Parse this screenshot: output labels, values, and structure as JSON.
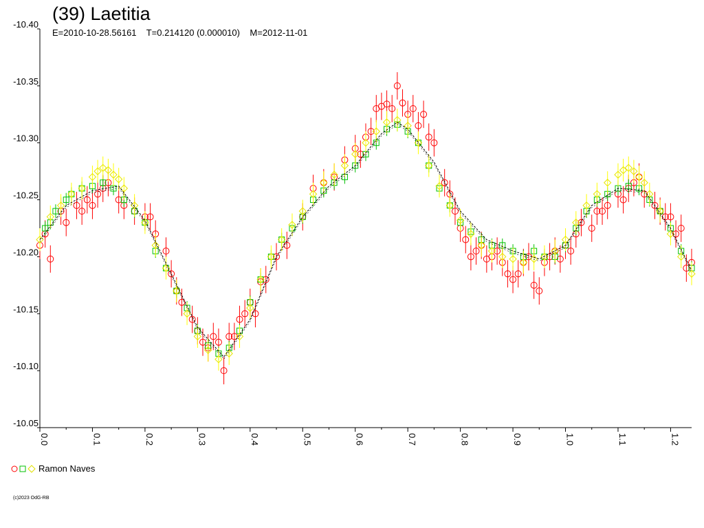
{
  "chart_data": {
    "type": "scatter",
    "title": "(39) Laetitia",
    "subtitle": "E=2010-10-28.56161    T=0.214120 (0.000010)    M=2012-11-01",
    "xlabel": "",
    "ylabel": "",
    "xlim": [
      0.0,
      1.24
    ],
    "ylim": [
      -10.4,
      -10.05
    ],
    "y_inverted": true,
    "x_ticks": [
      "0.0",
      "0.1",
      "0.2",
      "0.3",
      "0.4",
      "0.5",
      "0.6",
      "0.7",
      "0.8",
      "0.9",
      "1.0",
      "1.1",
      "1.2"
    ],
    "y_ticks": [
      "-10.40",
      "-10.35",
      "-10.30",
      "-10.25",
      "-10.20",
      "-10.15",
      "-10.10",
      "-10.05"
    ],
    "grid": false,
    "legend": {
      "placement": "bottom-left",
      "label": "Ramon Naves"
    },
    "copyright": "(c)2023 OdG-RB",
    "fit_curve": {
      "x": [
        0.0,
        0.05,
        0.1,
        0.15,
        0.2,
        0.25,
        0.3,
        0.35,
        0.4,
        0.45,
        0.5,
        0.55,
        0.6,
        0.65,
        0.68,
        0.7,
        0.75,
        0.8,
        0.85,
        0.9,
        0.95,
        1.0,
        1.05,
        1.1,
        1.15,
        1.2,
        1.24
      ],
      "y": [
        -10.215,
        -10.245,
        -10.258,
        -10.262,
        -10.232,
        -10.185,
        -10.138,
        -10.112,
        -10.145,
        -10.2,
        -10.235,
        -10.262,
        -10.28,
        -10.308,
        -10.318,
        -10.312,
        -10.283,
        -10.24,
        -10.215,
        -10.205,
        -10.198,
        -10.21,
        -10.245,
        -10.26,
        -10.258,
        -10.225,
        -10.188
      ]
    },
    "series": [
      {
        "color": "#ff0000",
        "marker": "circle",
        "x": [
          0.0,
          0.01,
          0.02,
          0.04,
          0.05,
          0.07,
          0.08,
          0.09,
          0.1,
          0.11,
          0.12,
          0.13,
          0.15,
          0.16,
          0.18,
          0.2,
          0.21,
          0.22,
          0.24,
          0.25,
          0.26,
          0.27,
          0.29,
          0.3,
          0.31,
          0.32,
          0.33,
          0.34,
          0.35,
          0.36,
          0.37,
          0.38,
          0.39,
          0.4,
          0.41,
          0.42,
          0.43,
          0.45,
          0.47,
          0.5,
          0.52,
          0.54,
          0.56,
          0.58,
          0.6,
          0.61,
          0.62,
          0.63,
          0.64,
          0.65,
          0.66,
          0.67,
          0.68,
          0.69,
          0.7,
          0.71,
          0.72,
          0.73,
          0.74,
          0.75,
          0.77,
          0.78,
          0.79,
          0.8,
          0.81,
          0.82,
          0.83,
          0.84,
          0.85,
          0.86,
          0.87,
          0.88,
          0.89,
          0.9,
          0.91,
          0.92,
          0.93,
          0.94,
          0.95,
          0.96,
          0.97,
          0.98,
          0.99,
          1.0,
          1.01,
          1.02,
          1.03,
          1.05,
          1.06,
          1.07,
          1.08,
          1.1,
          1.11,
          1.12,
          1.13,
          1.14,
          1.15,
          1.17,
          1.18,
          1.19,
          1.2,
          1.21,
          1.22,
          1.23,
          1.24
        ],
        "y": [
          -10.21,
          -10.22,
          -10.198,
          -10.24,
          -10.23,
          -10.245,
          -10.24,
          -10.25,
          -10.245,
          -10.255,
          -10.26,
          -10.265,
          -10.25,
          -10.245,
          -10.24,
          -10.235,
          -10.235,
          -10.22,
          -10.205,
          -10.185,
          -10.17,
          -10.16,
          -10.145,
          -10.135,
          -10.125,
          -10.12,
          -10.13,
          -10.125,
          -10.1,
          -10.13,
          -10.13,
          -10.145,
          -10.15,
          -10.16,
          -10.15,
          -10.178,
          -10.18,
          -10.2,
          -10.21,
          -10.235,
          -10.26,
          -10.265,
          -10.27,
          -10.285,
          -10.295,
          -10.29,
          -10.305,
          -10.31,
          -10.33,
          -10.332,
          -10.334,
          -10.33,
          -10.35,
          -10.335,
          -10.325,
          -10.33,
          -10.315,
          -10.325,
          -10.305,
          -10.3,
          -10.265,
          -10.255,
          -10.24,
          -10.225,
          -10.215,
          -10.2,
          -10.205,
          -10.21,
          -10.198,
          -10.2,
          -10.205,
          -10.195,
          -10.185,
          -10.18,
          -10.185,
          -10.195,
          -10.2,
          -10.175,
          -10.17,
          -10.195,
          -10.2,
          -10.205,
          -10.198,
          -10.21,
          -10.205,
          -10.22,
          -10.23,
          -10.225,
          -10.24,
          -10.24,
          -10.245,
          -10.255,
          -10.25,
          -10.26,
          -10.265,
          -10.27,
          -10.255,
          -10.245,
          -10.24,
          -10.235,
          -10.235,
          -10.22,
          -10.225,
          -10.19,
          -10.195
        ]
      },
      {
        "color": "#00c000",
        "marker": "square",
        "x": [
          0.01,
          0.02,
          0.03,
          0.05,
          0.06,
          0.08,
          0.1,
          0.12,
          0.14,
          0.16,
          0.18,
          0.2,
          0.22,
          0.24,
          0.26,
          0.28,
          0.3,
          0.32,
          0.34,
          0.36,
          0.38,
          0.4,
          0.42,
          0.44,
          0.46,
          0.48,
          0.5,
          0.52,
          0.54,
          0.56,
          0.58,
          0.6,
          0.62,
          0.64,
          0.66,
          0.68,
          0.7,
          0.72,
          0.74,
          0.76,
          0.78,
          0.8,
          0.82,
          0.84,
          0.86,
          0.88,
          0.9,
          0.92,
          0.94,
          0.96,
          0.98,
          1.0,
          1.02,
          1.04,
          1.06,
          1.08,
          1.1,
          1.12,
          1.14,
          1.16,
          1.18,
          1.2,
          1.22,
          1.24
        ],
        "y": [
          -10.225,
          -10.23,
          -10.24,
          -10.25,
          -10.255,
          -10.26,
          -10.262,
          -10.265,
          -10.26,
          -10.25,
          -10.24,
          -10.23,
          -10.205,
          -10.19,
          -10.17,
          -10.155,
          -10.135,
          -10.122,
          -10.115,
          -10.12,
          -10.135,
          -10.16,
          -10.18,
          -10.2,
          -10.215,
          -10.225,
          -10.235,
          -10.25,
          -10.258,
          -10.265,
          -10.27,
          -10.28,
          -10.29,
          -10.3,
          -10.312,
          -10.316,
          -10.31,
          -10.3,
          -10.28,
          -10.26,
          -10.245,
          -10.23,
          -10.222,
          -10.215,
          -10.21,
          -10.21,
          -10.205,
          -10.2,
          -10.205,
          -10.2,
          -10.2,
          -10.21,
          -10.225,
          -10.24,
          -10.25,
          -10.255,
          -10.26,
          -10.262,
          -10.26,
          -10.25,
          -10.24,
          -10.225,
          -10.205,
          -10.19
        ]
      },
      {
        "color": "#ffff00",
        "marker": "diamond",
        "x": [
          0.0,
          0.02,
          0.04,
          0.06,
          0.08,
          0.1,
          0.11,
          0.12,
          0.13,
          0.14,
          0.15,
          0.16,
          0.18,
          0.2,
          0.22,
          0.24,
          0.26,
          0.28,
          0.3,
          0.32,
          0.34,
          0.36,
          0.38,
          0.4,
          0.42,
          0.44,
          0.46,
          0.48,
          0.5,
          0.52,
          0.54,
          0.56,
          0.58,
          0.6,
          0.62,
          0.64,
          0.66,
          0.68,
          0.7,
          0.72,
          0.74,
          0.76,
          0.78,
          0.8,
          0.82,
          0.84,
          0.86,
          0.88,
          0.9,
          0.92,
          0.94,
          0.96,
          0.98,
          1.0,
          1.02,
          1.04,
          1.06,
          1.08,
          1.1,
          1.11,
          1.12,
          1.13,
          1.14,
          1.15,
          1.16,
          1.18,
          1.2,
          1.22,
          1.24
        ],
        "y": [
          -10.215,
          -10.235,
          -10.245,
          -10.255,
          -10.26,
          -10.27,
          -10.275,
          -10.278,
          -10.276,
          -10.272,
          -10.268,
          -10.26,
          -10.245,
          -10.23,
          -10.21,
          -10.19,
          -10.17,
          -10.15,
          -10.13,
          -10.118,
          -10.11,
          -10.115,
          -10.13,
          -10.155,
          -10.18,
          -10.2,
          -10.215,
          -10.228,
          -10.24,
          -10.255,
          -10.265,
          -10.272,
          -10.28,
          -10.29,
          -10.3,
          -10.31,
          -10.318,
          -10.32,
          -10.315,
          -10.3,
          -10.28,
          -10.262,
          -10.245,
          -10.232,
          -10.22,
          -10.21,
          -10.205,
          -10.2,
          -10.198,
          -10.195,
          -10.198,
          -10.2,
          -10.205,
          -10.215,
          -10.23,
          -10.245,
          -10.255,
          -10.265,
          -10.272,
          -10.276,
          -10.278,
          -10.275,
          -10.27,
          -10.265,
          -10.255,
          -10.24,
          -10.22,
          -10.2,
          -10.185
        ]
      }
    ]
  }
}
